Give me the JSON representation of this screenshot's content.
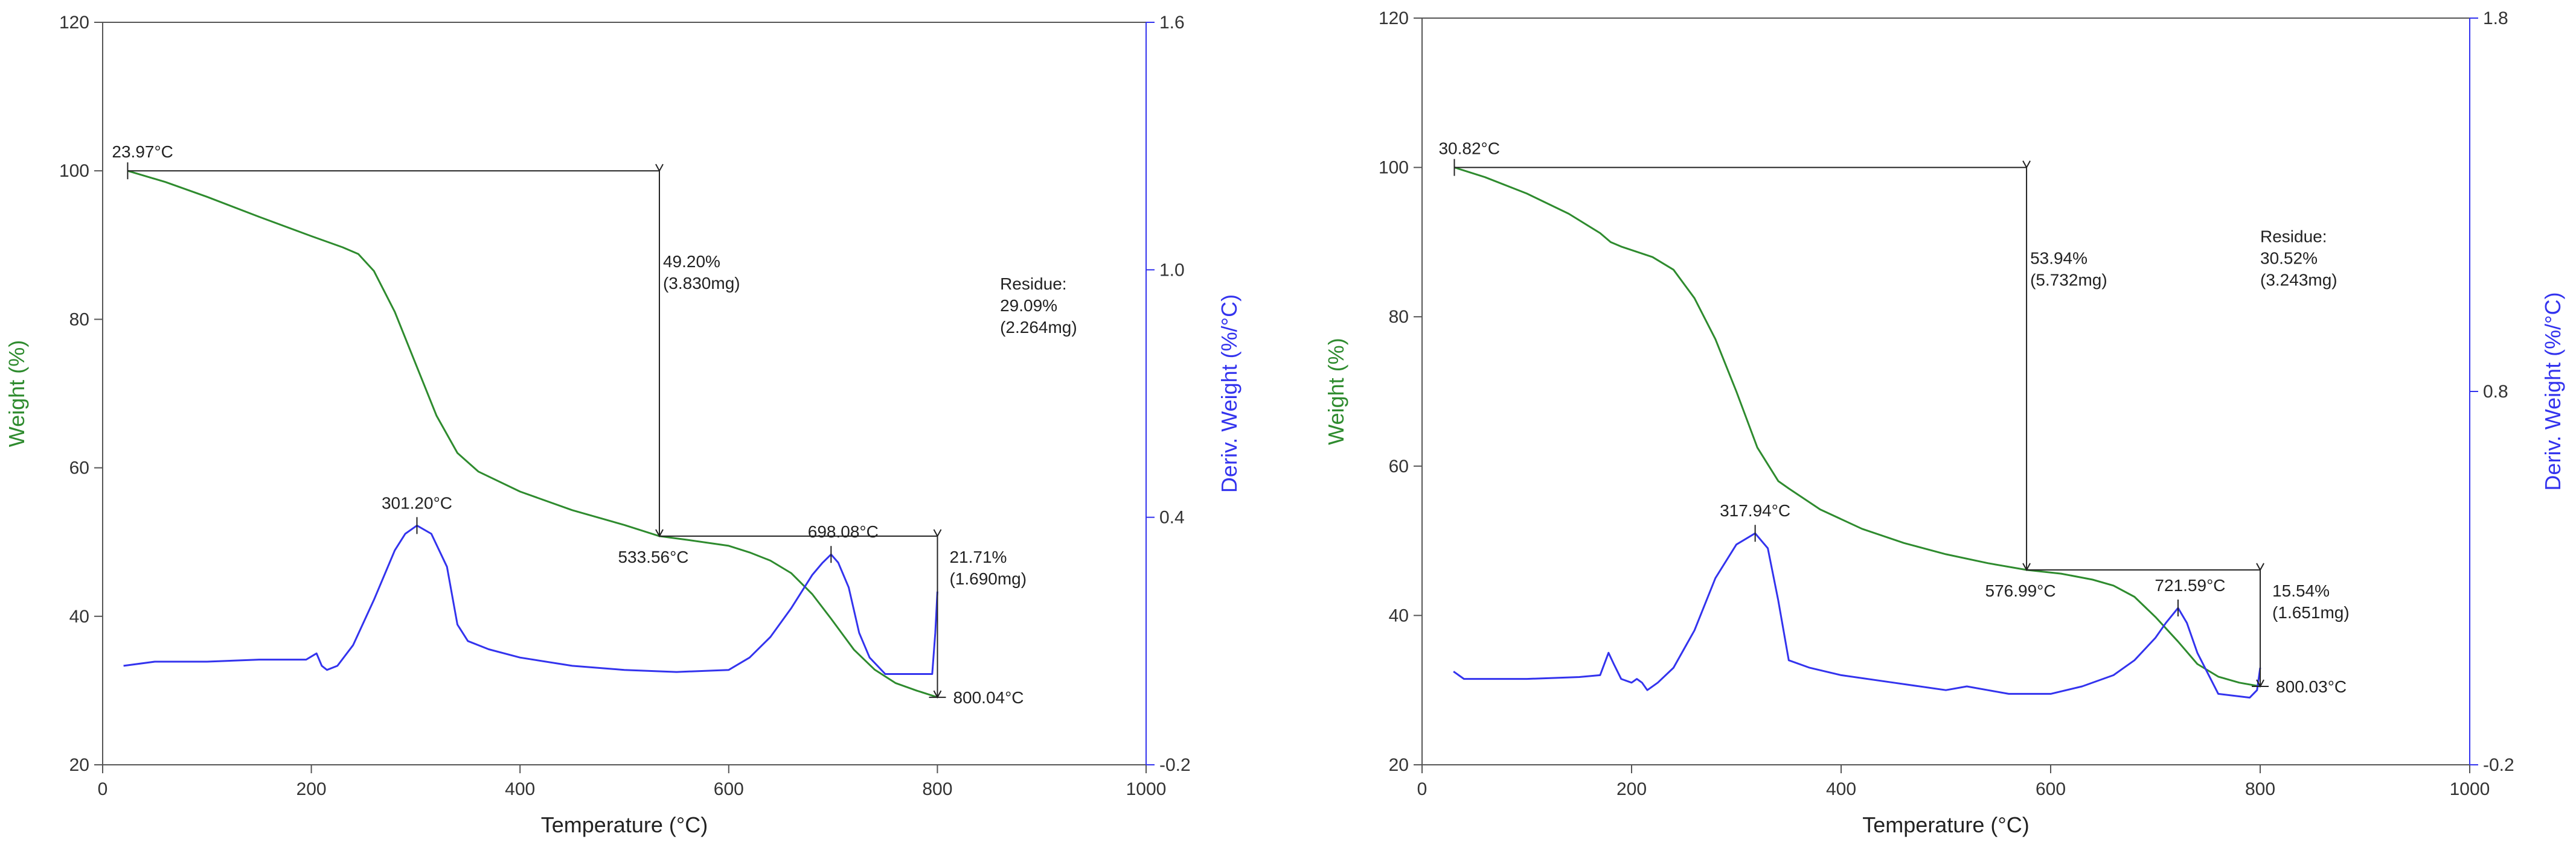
{
  "chart_data": [
    {
      "type": "line",
      "xlabel": "Temperature (°C)",
      "ylabel_left": "Weight (%)",
      "ylabel_right": "Deriv. Weight (%/°C)",
      "xlim": [
        0,
        1000
      ],
      "ylim_left": [
        20,
        120
      ],
      "ylim_right": [
        -0.2,
        1.6
      ],
      "x_ticks": [
        "0",
        "200",
        "400",
        "600",
        "800",
        "1000"
      ],
      "y_left_ticks": [
        "20",
        "40",
        "60",
        "80",
        "100",
        "120"
      ],
      "y_right_ticks": [
        "-0.2",
        "0.4",
        "1.0",
        "1.6"
      ],
      "grid": false,
      "colors": {
        "weight": "#2e8b2e",
        "deriv": "#3333ee",
        "annotation": "#222222",
        "axis_right": "#3333ee"
      },
      "series": [
        {
          "axis": "left",
          "x": [
            23.97,
            60,
            100,
            150,
            200,
            230,
            245,
            260,
            280,
            300,
            320,
            340,
            360,
            400,
            450,
            500,
            533.56,
            560,
            600,
            620,
            640,
            660,
            680,
            698,
            720,
            740,
            760,
            780,
            800.04
          ],
          "y": [
            100,
            98.5,
            96.5,
            93.8,
            91.2,
            89.7,
            88.8,
            86.5,
            81.0,
            74.0,
            67.0,
            62.0,
            59.5,
            56.8,
            54.3,
            52.3,
            50.8,
            50.3,
            49.5,
            48.6,
            47.5,
            45.8,
            43.0,
            39.7,
            35.5,
            32.8,
            31.0,
            30.0,
            29.1
          ]
        },
        {
          "axis": "right",
          "x": [
            20,
            50,
            100,
            150,
            195,
            205,
            210,
            215,
            225,
            240,
            260,
            280,
            290,
            301.2,
            315,
            330,
            340,
            350,
            370,
            400,
            450,
            500,
            550,
            600,
            620,
            640,
            660,
            680,
            690,
            698.08,
            705,
            715,
            725,
            735,
            750,
            780,
            788,
            792,
            795,
            798,
            800
          ],
          "y": [
            0.04,
            0.05,
            0.05,
            0.055,
            0.055,
            0.07,
            0.04,
            0.03,
            0.04,
            0.09,
            0.2,
            0.32,
            0.36,
            0.38,
            0.36,
            0.28,
            0.14,
            0.1,
            0.08,
            0.06,
            0.04,
            0.03,
            0.025,
            0.03,
            0.06,
            0.11,
            0.18,
            0.26,
            0.29,
            0.31,
            0.29,
            0.23,
            0.12,
            0.06,
            0.02,
            0.02,
            0.02,
            0.02,
            0.02,
            0.12,
            0.22
          ]
        }
      ],
      "annotations": {
        "start_label": "23.97°C",
        "step1_pct": "49.20%",
        "step1_mg": "(3.830mg)",
        "step1_end_label": "533.56°C",
        "step2_pct": "21.71%",
        "step2_mg": "(1.690mg)",
        "step2_end_label": "800.04°C",
        "peak1_label": "301.20°C",
        "peak2_label": "698.08°C",
        "residue_title": "Residue:",
        "residue_pct": "29.09%",
        "residue_mg": "(2.264mg)"
      },
      "markers": {
        "start": [
          23.97,
          100
        ],
        "step1_end": [
          533.56,
          50.8
        ],
        "step2_end": [
          800.04,
          29.09
        ],
        "peak1": [
          301.2,
          0.38
        ],
        "peak2": [
          698.08,
          0.31
        ]
      }
    },
    {
      "type": "line",
      "xlabel": "Temperature (°C)",
      "ylabel_left": "Weight (%)",
      "ylabel_right": "Deriv. Weight (%/°C)",
      "xlim": [
        0,
        1000
      ],
      "ylim_left": [
        20,
        120
      ],
      "ylim_right": [
        -0.2,
        1.8
      ],
      "x_ticks": [
        "0",
        "200",
        "400",
        "600",
        "800",
        "1000"
      ],
      "y_left_ticks": [
        "20",
        "40",
        "60",
        "80",
        "100",
        "120"
      ],
      "y_right_ticks": [
        "-0.2",
        "0.8",
        "1.8"
      ],
      "grid": false,
      "colors": {
        "weight": "#2e8b2e",
        "deriv": "#3333ee",
        "annotation": "#222222",
        "axis_right": "#3333ee"
      },
      "series": [
        {
          "axis": "left",
          "x": [
            30.82,
            60,
            100,
            140,
            170,
            180,
            190,
            220,
            240,
            260,
            280,
            300,
            320,
            340,
            350,
            380,
            420,
            460,
            500,
            540,
            576.99,
            610,
            640,
            660,
            680,
            700,
            721.59,
            740,
            760,
            780,
            800.03
          ],
          "y": [
            100,
            98.7,
            96.5,
            93.8,
            91.2,
            90.0,
            89.4,
            88.0,
            86.3,
            82.5,
            77.0,
            70.0,
            62.5,
            58.0,
            57.0,
            54.2,
            51.6,
            49.7,
            48.2,
            47.0,
            46.1,
            45.6,
            44.8,
            44.0,
            42.5,
            39.8,
            36.5,
            33.5,
            31.8,
            31.0,
            30.5
          ]
        },
        {
          "axis": "right",
          "x": [
            30,
            40,
            60,
            100,
            150,
            170,
            178,
            183,
            190,
            200,
            205,
            210,
            215,
            225,
            240,
            260,
            280,
            300,
            317.94,
            330,
            340,
            350,
            370,
            400,
            450,
            500,
            520,
            540,
            560,
            600,
            630,
            660,
            680,
            700,
            710,
            721.59,
            730,
            740,
            760,
            790,
            797,
            800
          ],
          "y": [
            0.05,
            0.03,
            0.03,
            0.03,
            0.035,
            0.04,
            0.1,
            0.07,
            0.03,
            0.02,
            0.03,
            0.02,
            0.0,
            0.02,
            0.06,
            0.16,
            0.3,
            0.39,
            0.42,
            0.38,
            0.24,
            0.08,
            0.06,
            0.04,
            0.02,
            0.0,
            0.01,
            0.0,
            -0.01,
            -0.01,
            0.01,
            0.04,
            0.08,
            0.14,
            0.18,
            0.22,
            0.18,
            0.1,
            -0.01,
            -0.02,
            0.0,
            0.06
          ]
        }
      ],
      "annotations": {
        "start_label": "30.82°C",
        "step1_pct": "53.94%",
        "step1_mg": "(5.732mg)",
        "step1_end_label": "576.99°C",
        "step2_pct": "15.54%",
        "step2_mg": "(1.651mg)",
        "step2_end_label": "800.03°C",
        "peak1_label": "317.94°C",
        "peak2_label": "721.59°C",
        "residue_title": "Residue:",
        "residue_pct": "30.52%",
        "residue_mg": "(3.243mg)"
      },
      "markers": {
        "start": [
          30.82,
          100
        ],
        "step1_end": [
          576.99,
          46.1
        ],
        "step2_end": [
          800.03,
          30.5
        ],
        "peak1": [
          317.94,
          0.42
        ],
        "peak2": [
          721.59,
          0.22
        ]
      }
    }
  ]
}
